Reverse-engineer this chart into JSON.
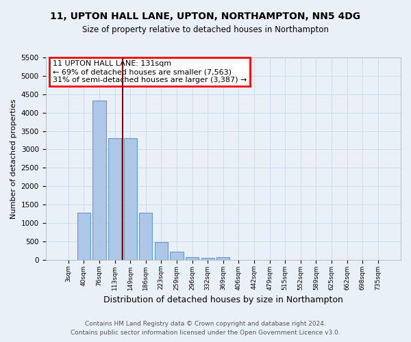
{
  "title_line1": "11, UPTON HALL LANE, UPTON, NORTHAMPTON, NN5 4DG",
  "title_line2": "Size of property relative to detached houses in Northampton",
  "xlabel": "Distribution of detached houses by size in Northampton",
  "ylabel": "Number of detached properties",
  "bar_labels": [
    "3sqm",
    "40sqm",
    "76sqm",
    "113sqm",
    "149sqm",
    "186sqm",
    "223sqm",
    "259sqm",
    "296sqm",
    "332sqm",
    "369sqm",
    "406sqm",
    "442sqm",
    "479sqm",
    "515sqm",
    "552sqm",
    "589sqm",
    "625sqm",
    "662sqm",
    "698sqm",
    "735sqm"
  ],
  "bar_values": [
    0,
    1270,
    4330,
    3300,
    3300,
    1280,
    480,
    215,
    75,
    55,
    60,
    0,
    0,
    0,
    0,
    0,
    0,
    0,
    0,
    0,
    0
  ],
  "bar_color": "#aec6e8",
  "bar_edge_color": "#5a9fd4",
  "vline_color": "#8b0000",
  "annotation_text": "11 UPTON HALL LANE: 131sqm\n← 69% of detached houses are smaller (7,563)\n31% of semi-detached houses are larger (3,387) →",
  "annotation_box_color": "white",
  "annotation_box_edge": "red",
  "ylim": [
    0,
    5500
  ],
  "yticks": [
    0,
    500,
    1000,
    1500,
    2000,
    2500,
    3000,
    3500,
    4000,
    4500,
    5000,
    5500
  ],
  "grid_color": "#c8d8e8",
  "background_color": "#eaf0f8",
  "footer_line1": "Contains HM Land Registry data © Crown copyright and database right 2024.",
  "footer_line2": "Contains public sector information licensed under the Open Government Licence v3.0."
}
